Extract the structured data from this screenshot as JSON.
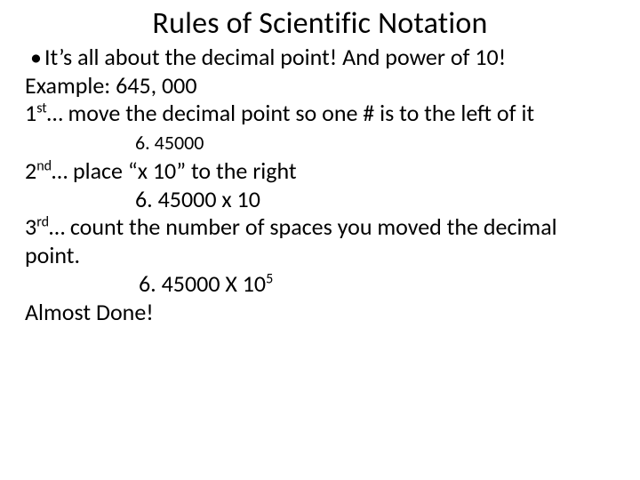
{
  "title": "Rules of Scientific Notation",
  "bullet": {
    "dot": "•",
    "text": "It’s all about the decimal point! And power of 10!"
  },
  "example_label": "Example:   645, 000",
  "step1": {
    "prefix": "1",
    "sup": "st",
    "rest": "… move the decimal point so one # is to the left of it",
    "value": "6. 45000"
  },
  "step2": {
    "prefix": "2",
    "sup": "nd",
    "rest": "… place “x 10” to the right",
    "value": "6. 45000 x 10"
  },
  "step3": {
    "prefix": "3",
    "sup": "rd",
    "rest": "… count the number of spaces you moved the decimal point.",
    "value_pre": "6. 45000 X 10",
    "value_sup": "5"
  },
  "almost": "Almost Done!",
  "style": {
    "background_color": "#ffffff",
    "text_color": "#000000",
    "title_fontsize": 34,
    "body_fontsize": 26,
    "step1_value_fontsize": 22
  }
}
